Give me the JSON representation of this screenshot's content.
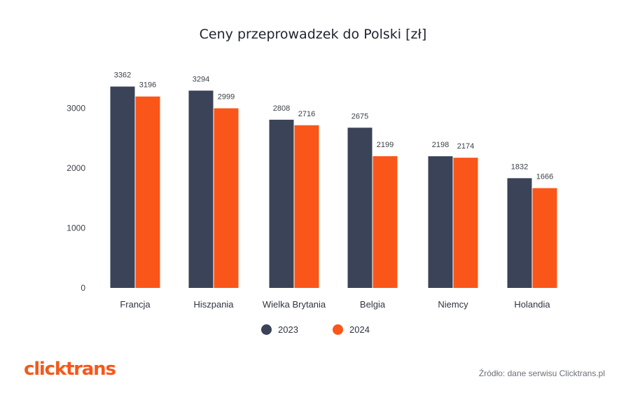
{
  "chart_data": {
    "type": "bar",
    "title": "Ceny przeprowadzek do Polski [zł]",
    "xlabel": "",
    "ylabel": "",
    "categories": [
      "Francja",
      "Hiszpania",
      "Wielka Brytania",
      "Belgia",
      "Niemcy",
      "Holandia"
    ],
    "series": [
      {
        "name": "2023",
        "color": "#3a4357",
        "values": [
          3362,
          3294,
          2808,
          2675,
          2198,
          1832
        ]
      },
      {
        "name": "2024",
        "color": "#fa561a",
        "values": [
          3196,
          2999,
          2716,
          2199,
          2174,
          1666
        ]
      }
    ],
    "yticks": [
      0,
      1000,
      2000,
      3000
    ],
    "ylim": [
      0,
      3500
    ],
    "grid": false,
    "legend_position": "bottom-center",
    "data_labels": true
  },
  "brand": {
    "logo_part1": "click",
    "logo_part2": "trans",
    "logo_color_dark": "#f25a1d",
    "logo_color": "#fa561a"
  },
  "source_text": "Źródło: dane serwisu Clicktrans.pl"
}
